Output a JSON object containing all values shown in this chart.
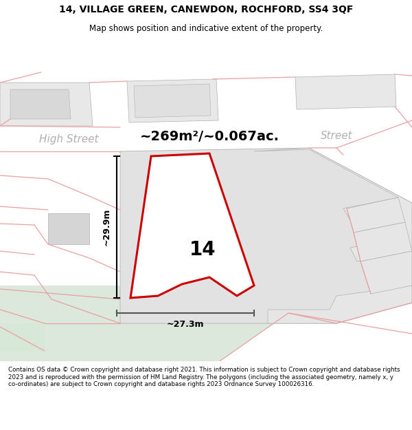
{
  "title": "14, VILLAGE GREEN, CANEWDON, ROCHFORD, SS4 3QF",
  "subtitle": "Map shows position and indicative extent of the property.",
  "footer": "Contains OS data © Crown copyright and database right 2021. This information is subject to Crown copyright and database rights 2023 and is reproduced with the permission of HM Land Registry. The polygons (including the associated geometry, namely x, y co-ordinates) are subject to Crown copyright and database rights 2023 Ordnance Survey 100026316.",
  "area_label": "~269m²/~0.067ac.",
  "dim_vertical": "~29.9m",
  "dim_horizontal": "~27.3m",
  "street_label_left": "High Street",
  "street_label_right": "Street",
  "number_label": "14",
  "map_bg": "#f0eeea",
  "red_line_color": "#cc0000",
  "light_red": "#e8a0a0",
  "gray_plot": "#d8d8d8",
  "gray_line": "#b0b0b0",
  "green_bg": "#dce8dc",
  "road_white": "#ffffff",
  "header_bg": "#ffffff"
}
